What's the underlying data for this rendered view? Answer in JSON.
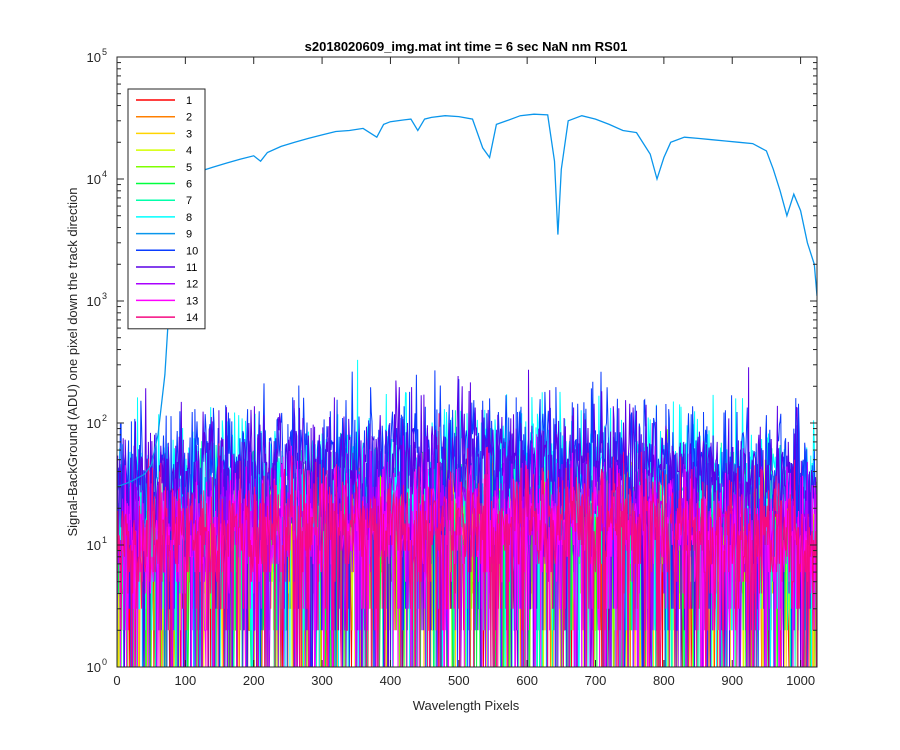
{
  "chart_data": {
    "type": "line",
    "title": "s2018020609_img.mat int time = 6 sec  NaN nm RS01",
    "xlabel": "Wavelength Pixels",
    "ylabel": "Signal-BackGround (ADU) one pixel down the track direction",
    "xlim": [
      0,
      1024
    ],
    "ylim": [
      1,
      100000
    ],
    "yscale": "log",
    "xticks": [
      "0",
      "100",
      "200",
      "300",
      "400",
      "500",
      "600",
      "700",
      "800",
      "900",
      "1000"
    ],
    "yticks": [
      {
        "base": "10",
        "exp": "0",
        "value": 1
      },
      {
        "base": "10",
        "exp": "1",
        "value": 10
      },
      {
        "base": "10",
        "exp": "2",
        "value": 100
      },
      {
        "base": "10",
        "exp": "3",
        "value": 1000
      },
      {
        "base": "10",
        "exp": "4",
        "value": 10000
      },
      {
        "base": "10",
        "exp": "5",
        "value": 100000
      }
    ],
    "grid": false,
    "legend_position": "top-left",
    "series": [
      {
        "name": "1",
        "color": "#ff0000",
        "kind": "noise",
        "median": 9
      },
      {
        "name": "2",
        "color": "#ff7f00",
        "kind": "noise",
        "median": 10
      },
      {
        "name": "3",
        "color": "#ffd400",
        "kind": "noise",
        "median": 10
      },
      {
        "name": "4",
        "color": "#d4ff00",
        "kind": "noise",
        "median": 11
      },
      {
        "name": "5",
        "color": "#7fff00",
        "kind": "noise",
        "median": 12
      },
      {
        "name": "6",
        "color": "#00ff3f",
        "kind": "noise",
        "median": 14
      },
      {
        "name": "7",
        "color": "#00ffaa",
        "kind": "noise",
        "median": 20
      },
      {
        "name": "8",
        "color": "#00ffff",
        "kind": "noise",
        "median": 40
      },
      {
        "name": "9",
        "color": "#0a96ec",
        "kind": "signal",
        "points": [
          [
            0,
            30
          ],
          [
            20,
            33
          ],
          [
            40,
            38
          ],
          [
            50,
            45
          ],
          [
            60,
            80
          ],
          [
            70,
            250
          ],
          [
            80,
            2000
          ],
          [
            90,
            8000
          ],
          [
            100,
            10500
          ],
          [
            120,
            11500
          ],
          [
            140,
            12500
          ],
          [
            160,
            13500
          ],
          [
            180,
            14500
          ],
          [
            200,
            15500
          ],
          [
            210,
            14000
          ],
          [
            220,
            16500
          ],
          [
            240,
            18500
          ],
          [
            260,
            20000
          ],
          [
            280,
            21500
          ],
          [
            300,
            23000
          ],
          [
            320,
            24500
          ],
          [
            340,
            25000
          ],
          [
            360,
            26000
          ],
          [
            380,
            22000
          ],
          [
            390,
            28000
          ],
          [
            400,
            29500
          ],
          [
            420,
            30500
          ],
          [
            430,
            31000
          ],
          [
            440,
            25000
          ],
          [
            450,
            31000
          ],
          [
            460,
            32000
          ],
          [
            480,
            33000
          ],
          [
            500,
            32500
          ],
          [
            520,
            31000
          ],
          [
            535,
            18000
          ],
          [
            545,
            15000
          ],
          [
            555,
            28000
          ],
          [
            570,
            30000
          ],
          [
            590,
            33000
          ],
          [
            610,
            34000
          ],
          [
            630,
            33500
          ],
          [
            640,
            14000
          ],
          [
            645,
            3500
          ],
          [
            650,
            12000
          ],
          [
            660,
            30000
          ],
          [
            680,
            33000
          ],
          [
            700,
            31000
          ],
          [
            720,
            28000
          ],
          [
            740,
            25000
          ],
          [
            760,
            24000
          ],
          [
            780,
            16000
          ],
          [
            790,
            10000
          ],
          [
            800,
            15000
          ],
          [
            810,
            20000
          ],
          [
            830,
            22000
          ],
          [
            850,
            21500
          ],
          [
            870,
            21000
          ],
          [
            890,
            20500
          ],
          [
            910,
            20000
          ],
          [
            930,
            19500
          ],
          [
            950,
            17000
          ],
          [
            960,
            12000
          ],
          [
            970,
            8000
          ],
          [
            980,
            5000
          ],
          [
            990,
            7500
          ],
          [
            1000,
            5500
          ],
          [
            1010,
            3000
          ],
          [
            1020,
            2000
          ],
          [
            1024,
            1100
          ]
        ]
      },
      {
        "name": "10",
        "color": "#0a3cff",
        "kind": "noise",
        "median": 50
      },
      {
        "name": "11",
        "color": "#5a00e6",
        "kind": "noise",
        "median": 45
      },
      {
        "name": "12",
        "color": "#aa00ff",
        "kind": "noise",
        "median": 15
      },
      {
        "name": "13",
        "color": "#ff00ff",
        "kind": "noise",
        "median": 13
      },
      {
        "name": "14",
        "color": "#f50a80",
        "kind": "noise",
        "median": 14
      }
    ]
  }
}
